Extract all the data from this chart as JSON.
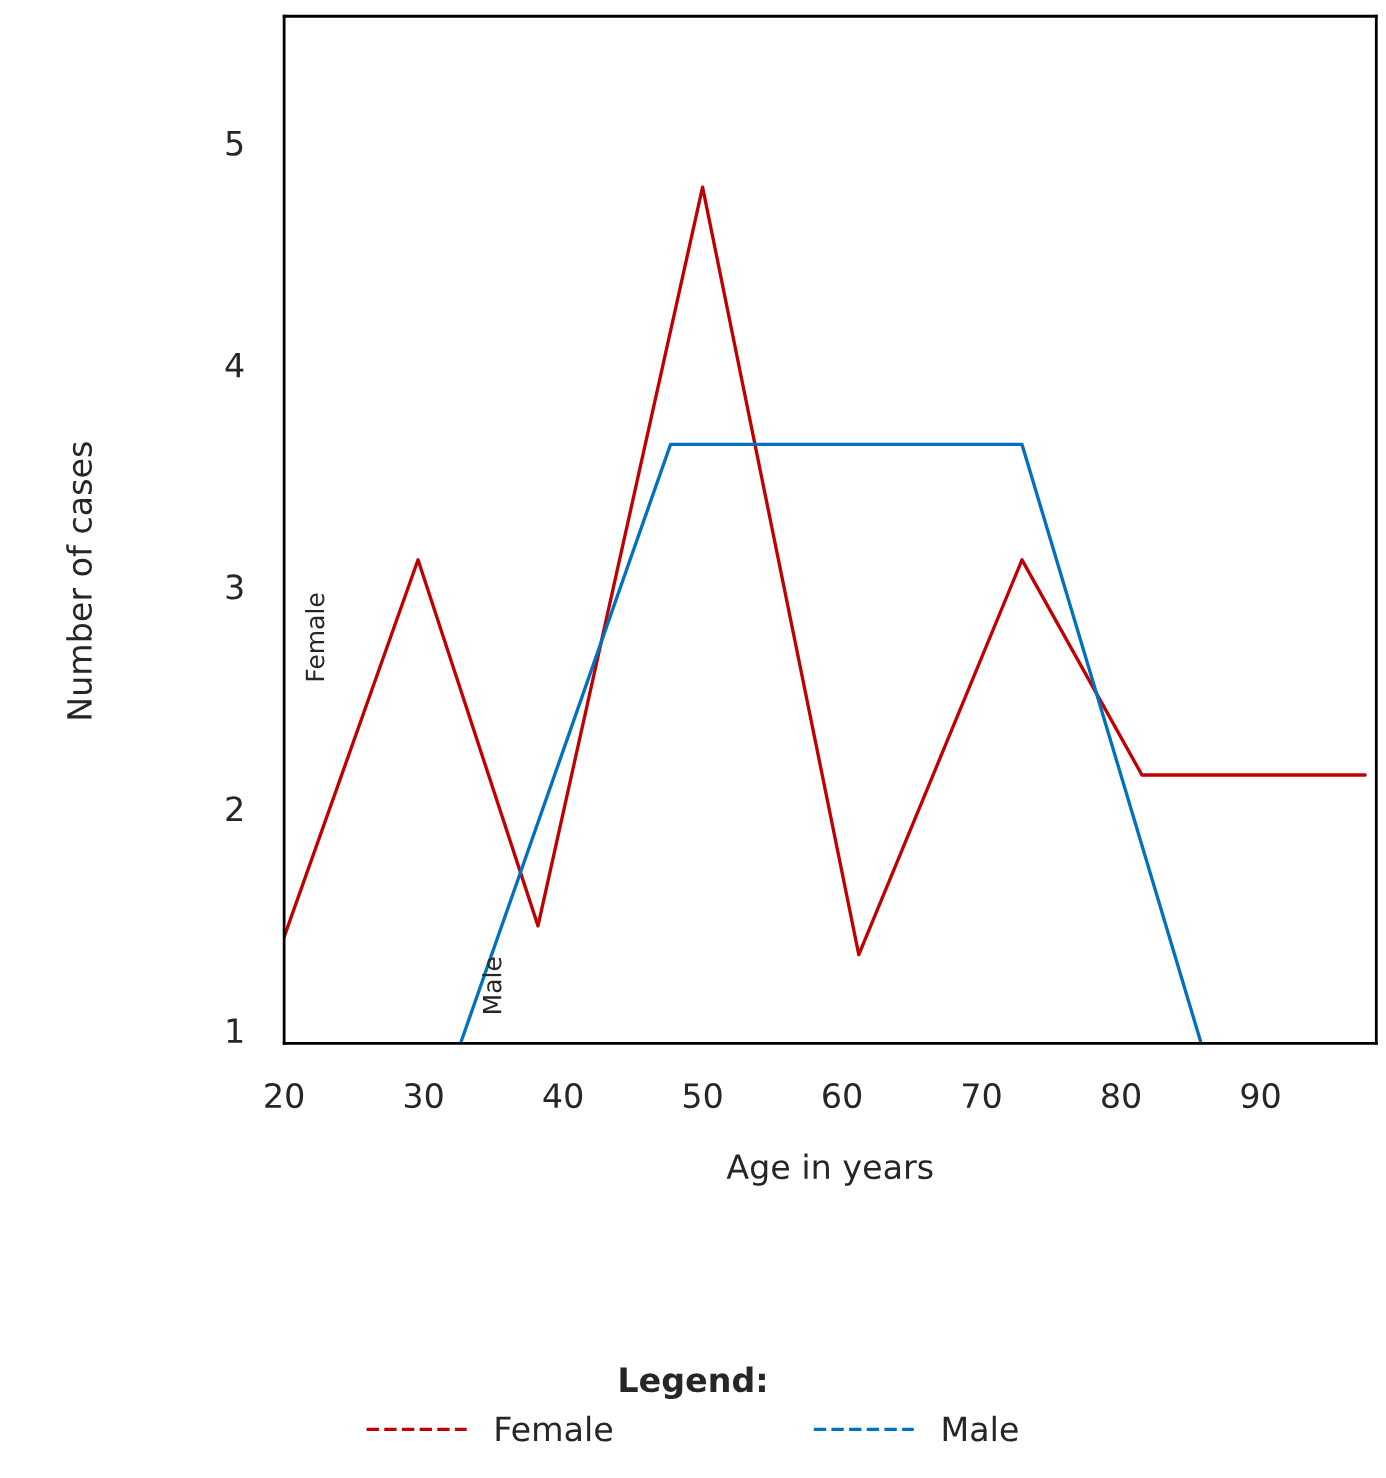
{
  "chart_data": {
    "type": "line",
    "xlabel": "Age in years",
    "ylabel": "Number of cases",
    "legend_title": "Legend:",
    "xlim": [
      20,
      98.3
    ],
    "ylim": [
      0.94,
      5.57
    ],
    "xticks": [
      20,
      30,
      40,
      50,
      60,
      70,
      80,
      90
    ],
    "yticks": [
      1,
      2,
      3,
      4,
      5
    ],
    "grid": false,
    "legend": "bottom",
    "marker": "none",
    "line_style": "solid",
    "series": [
      {
        "name": "Female",
        "color": "#c00000",
        "x": [
          20,
          29.6,
          38.2,
          50,
          61.2,
          72.9,
          81.5,
          97.5
        ],
        "values": [
          1.42,
          3.12,
          1.47,
          4.8,
          1.34,
          3.12,
          2.15,
          2.15
        ]
      },
      {
        "name": "Male",
        "color": "#0070c0",
        "x": [
          32.7,
          47.7,
          72.9,
          85.7
        ],
        "values": [
          0.95,
          3.64,
          3.64,
          0.95
        ]
      }
    ]
  }
}
